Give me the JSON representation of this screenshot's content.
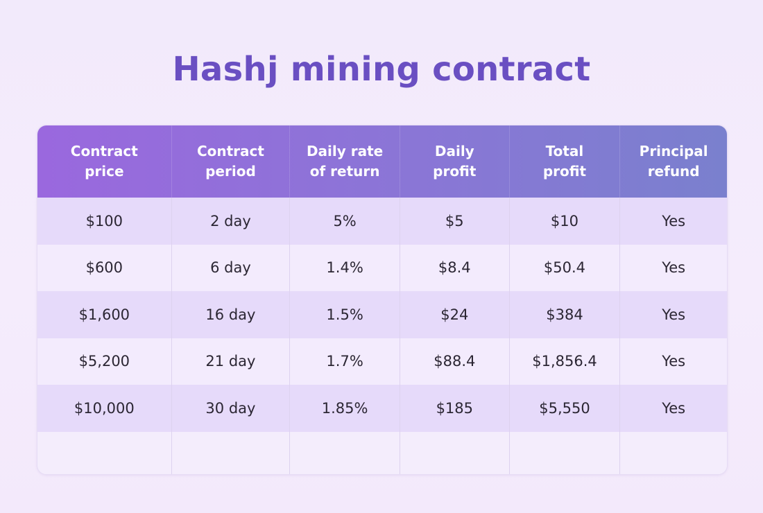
{
  "title": "Hashj mining contract",
  "table": {
    "headers": [
      "Contract\nprice",
      "Contract\nperiod",
      "Daily rate\nof return",
      "Daily\nprofit",
      "Total\nprofit",
      "Principal\nrefund"
    ],
    "rows": [
      [
        "$100",
        "2 day",
        "5%",
        "$5",
        "$10",
        "Yes"
      ],
      [
        "$600",
        "6 day",
        "1.4%",
        "$8.4",
        "$50.4",
        "Yes"
      ],
      [
        "$1,600",
        "16 day",
        "1.5%",
        "$24",
        "$384",
        "Yes"
      ],
      [
        "$5,200",
        "21 day",
        "1.7%",
        "$88.4",
        "$1,856.4",
        "Yes"
      ],
      [
        "$10,000",
        "30 day",
        "1.85%",
        "$185",
        "$5,550",
        "Yes"
      ]
    ]
  },
  "colors": {
    "title": "#6a4fc2",
    "header_gradient_start": "#9a68de",
    "header_gradient_end": "#7a80ce",
    "row_shaded": "#e6dafa",
    "row_light": "#f3ebfd",
    "background": "#f3eafb"
  }
}
